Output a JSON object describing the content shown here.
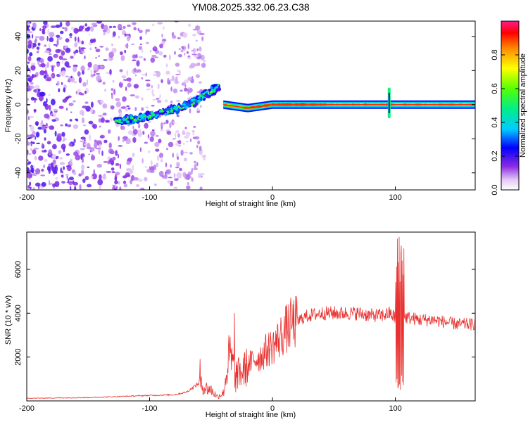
{
  "title": "YM08.2025.332.06.23.C38",
  "colors": {
    "snr_line": "#e8302e",
    "background": "#ffffff",
    "axis": "#000000"
  },
  "chart_data": [
    {
      "type": "heatmap",
      "name": "spectrogram",
      "xlabel": "Height of straight line (km)",
      "ylabel": "Frequency (Hz)",
      "xlim": [
        -200,
        165
      ],
      "ylim": [
        -50,
        49
      ],
      "xticks": [
        -200,
        -100,
        0,
        100
      ],
      "xtick_labels": [
        "-200",
        "-100",
        "0",
        "100"
      ],
      "yticks": [
        40,
        20,
        0,
        -20,
        -40
      ],
      "ytick_labels": [
        "40",
        "20",
        "0",
        "-20",
        "-40"
      ],
      "colorbar": {
        "label": "Normalized spectral amplitude",
        "range": [
          0.0,
          1.0
        ],
        "ticks": [
          0.0,
          0.2,
          0.4,
          0.6,
          0.8
        ],
        "tick_labels": [
          "0.0",
          "0.2",
          "0.4",
          "0.6",
          "0.8"
        ],
        "colormap": "rainbow"
      },
      "features": [
        {
          "name": "scattered noise",
          "x_range": [
            -200,
            -55
          ],
          "freq_range": [
            -50,
            49
          ],
          "amplitude": 0.12
        },
        {
          "name": "rising band",
          "x": [
            -128,
            -110,
            -90,
            -75,
            -60,
            -50,
            -44
          ],
          "freq": [
            -10,
            -8,
            -5,
            -2,
            3,
            8,
            10
          ],
          "amplitude": 0.35
        },
        {
          "name": "steady band",
          "x": [
            -40,
            -20,
            0,
            40,
            80,
            120,
            165
          ],
          "freq": [
            0,
            -2,
            0,
            0,
            0,
            0,
            0
          ],
          "amplitude": 0.9
        },
        {
          "name": "spike",
          "x": 95,
          "freq_range": [
            -8,
            10
          ],
          "amplitude": 0.5
        }
      ]
    },
    {
      "type": "line",
      "name": "snr",
      "xlabel": "Height of straight line (km)",
      "ylabel": "SNR (10 * v/v)",
      "xlim": [
        -200,
        165
      ],
      "ylim": [
        0,
        7700
      ],
      "xticks": [
        -200,
        -100,
        0,
        100
      ],
      "xtick_labels": [
        "-200",
        "-100",
        "0",
        "100"
      ],
      "yticks": [
        2000,
        4000,
        6000
      ],
      "ytick_labels": [
        "2000",
        "4000",
        "6000"
      ],
      "envelope": {
        "x": [
          -200,
          -150,
          -100,
          -80,
          -70,
          -60,
          -55,
          -50,
          -45,
          -40,
          -35,
          -30,
          -25,
          -20,
          -15,
          -10,
          -5,
          0,
          5,
          10,
          15,
          20,
          25,
          30,
          40,
          50,
          60,
          70,
          80,
          90,
          95,
          100,
          110,
          120,
          130,
          140,
          150,
          165
        ],
        "y": [
          120,
          150,
          250,
          280,
          400,
          800,
          600,
          500,
          200,
          350,
          2100,
          1200,
          1300,
          1600,
          1900,
          2000,
          2300,
          2500,
          2800,
          3200,
          3500,
          3600,
          3800,
          3900,
          4000,
          4000,
          4000,
          4000,
          3900,
          3900,
          4000,
          3800,
          3800,
          3700,
          3700,
          3600,
          3500,
          3500
        ]
      },
      "spikes": [
        {
          "x": -59,
          "y": 1900
        },
        {
          "x": -31,
          "y": 4000
        },
        {
          "x": -30,
          "y": 400
        },
        {
          "x": 102,
          "y": 7700
        },
        {
          "x": 104,
          "y": 300
        },
        {
          "x": 106,
          "y": 6200
        }
      ]
    }
  ]
}
